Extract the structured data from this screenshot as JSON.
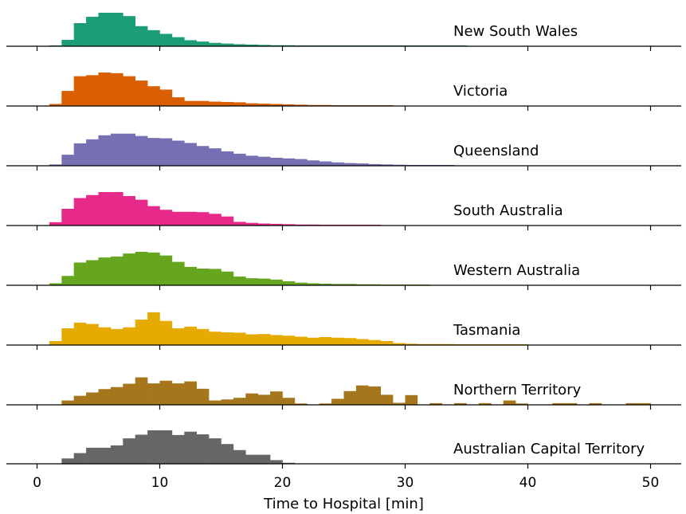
{
  "chart_data": {
    "type": "bar",
    "subtype": "stacked-histogram-ridgeline",
    "xlabel": "Time to Hospital [min]",
    "xlim": [
      -2.5,
      52.5
    ],
    "xticks": [
      0,
      10,
      20,
      30,
      40,
      50
    ],
    "bin_width": 1,
    "bin_start": 0,
    "series": [
      {
        "name": "New South Wales",
        "color": "#1b9e77",
        "values": [
          0,
          0.02,
          0.19,
          0.69,
          0.88,
          1.0,
          1.0,
          0.9,
          0.6,
          0.48,
          0.37,
          0.27,
          0.18,
          0.14,
          0.1,
          0.08,
          0.06,
          0.05,
          0.04,
          0.03,
          0.03,
          0.02,
          0.02,
          0.02,
          0.01,
          0.01,
          0.01,
          0.01,
          0.01,
          0.01,
          0.01,
          0.01,
          0.005,
          0.005,
          0.005,
          0.0,
          0.0,
          0.0,
          0.0,
          0.0,
          0.0,
          0.0,
          0.0,
          0.0,
          0.0,
          0.0,
          0.0,
          0.0,
          0.0,
          0.0
        ]
      },
      {
        "name": "Victoria",
        "color": "#d95f02",
        "values": [
          0,
          0.06,
          0.45,
          0.89,
          0.92,
          1.0,
          0.98,
          0.89,
          0.76,
          0.59,
          0.49,
          0.26,
          0.15,
          0.15,
          0.13,
          0.12,
          0.11,
          0.08,
          0.07,
          0.06,
          0.05,
          0.04,
          0.03,
          0.03,
          0.02,
          0.02,
          0.02,
          0.01,
          0.01,
          0.0,
          0.0,
          0.0,
          0.0,
          0.0,
          0.0,
          0.0,
          0.0,
          0.0,
          0.0,
          0.0,
          0.0,
          0.0,
          0.0,
          0.0,
          0.0,
          0.0,
          0.0,
          0.0,
          0.0,
          0.0
        ]
      },
      {
        "name": "Queensland",
        "color": "#7570b3",
        "values": [
          0,
          0.04,
          0.33,
          0.67,
          0.79,
          0.91,
          0.96,
          0.96,
          0.89,
          0.83,
          0.82,
          0.75,
          0.68,
          0.59,
          0.52,
          0.43,
          0.36,
          0.3,
          0.27,
          0.24,
          0.22,
          0.2,
          0.16,
          0.13,
          0.1,
          0.08,
          0.07,
          0.05,
          0.04,
          0.03,
          0.02,
          0.02,
          0.01,
          0.01,
          0.0,
          0.0,
          0.0,
          0.0,
          0.0,
          0.0,
          0.0,
          0.0,
          0.0,
          0.0,
          0.0,
          0.0,
          0.0,
          0.0,
          0.0,
          0.0
        ]
      },
      {
        "name": "South Australia",
        "color": "#e7298a",
        "values": [
          0,
          0.1,
          0.5,
          0.82,
          0.91,
          1.0,
          1.0,
          0.88,
          0.77,
          0.58,
          0.47,
          0.41,
          0.41,
          0.4,
          0.35,
          0.27,
          0.11,
          0.08,
          0.06,
          0.05,
          0.04,
          0.03,
          0.03,
          0.02,
          0.01,
          0.01,
          0.01,
          0.01,
          0.0,
          0.0,
          0.0,
          0.0,
          0.0,
          0.0,
          0.0,
          0.0,
          0.0,
          0.0,
          0.0,
          0.0,
          0.0,
          0.0,
          0.0,
          0.0,
          0.0,
          0.0,
          0.0,
          0.0,
          0.0,
          0.0
        ]
      },
      {
        "name": "Western Australia",
        "color": "#66a61e",
        "values": [
          0,
          0.06,
          0.28,
          0.68,
          0.75,
          0.83,
          0.86,
          0.95,
          1.0,
          0.98,
          0.89,
          0.7,
          0.55,
          0.5,
          0.49,
          0.41,
          0.26,
          0.21,
          0.2,
          0.17,
          0.12,
          0.08,
          0.06,
          0.05,
          0.04,
          0.04,
          0.03,
          0.03,
          0.02,
          0.02,
          0.01,
          0.01,
          0.0,
          0.0,
          0.0,
          0.0,
          0.0,
          0.0,
          0.0,
          0.0,
          0.0,
          0.0,
          0.0,
          0.0,
          0.0,
          0.0,
          0.0,
          0.0,
          0.0,
          0.0
        ]
      },
      {
        "name": "Tasmania",
        "color": "#e6ab02",
        "values": [
          0,
          0.12,
          0.5,
          0.67,
          0.63,
          0.53,
          0.48,
          0.53,
          0.76,
          0.98,
          0.72,
          0.5,
          0.55,
          0.48,
          0.4,
          0.38,
          0.37,
          0.32,
          0.33,
          0.3,
          0.28,
          0.25,
          0.22,
          0.24,
          0.22,
          0.21,
          0.18,
          0.15,
          0.12,
          0.06,
          0.04,
          0.03,
          0.03,
          0.03,
          0.02,
          0.02,
          0.02,
          0.02,
          0.02,
          0.02,
          0.0,
          0.0,
          0.0,
          0.0,
          0.0,
          0.0,
          0.0,
          0.0,
          0.0,
          0.0
        ]
      },
      {
        "name": "Northern Territory",
        "color": "#a6761d",
        "values": [
          0,
          0.0,
          0.13,
          0.27,
          0.37,
          0.47,
          0.53,
          0.63,
          0.82,
          0.64,
          0.72,
          0.64,
          0.7,
          0.48,
          0.13,
          0.16,
          0.21,
          0.34,
          0.3,
          0.4,
          0.21,
          0.04,
          0.0,
          0.04,
          0.18,
          0.41,
          0.58,
          0.55,
          0.3,
          0.06,
          0.29,
          0.0,
          0.05,
          0.0,
          0.05,
          0.0,
          0.05,
          0.0,
          0.13,
          0.04,
          0.0,
          0.0,
          0.05,
          0.05,
          0.0,
          0.05,
          0.0,
          0.0,
          0.05,
          0.05
        ]
      },
      {
        "name": "Australian Capital Territory",
        "color": "#666666",
        "values": [
          0,
          0.0,
          0.16,
          0.32,
          0.48,
          0.48,
          0.55,
          0.76,
          0.87,
          1.0,
          1.0,
          0.86,
          0.96,
          0.88,
          0.76,
          0.59,
          0.41,
          0.27,
          0.27,
          0.11,
          0.03,
          0.0,
          0.0,
          0.0,
          0.0,
          0.0,
          0.0,
          0.0,
          0.0,
          0.0,
          0.0,
          0.0,
          0.0,
          0.0,
          0.0,
          0.0,
          0.0,
          0.0,
          0.0,
          0.0,
          0.0,
          0.0,
          0.0,
          0.0,
          0.0,
          0.0,
          0.0,
          0.0,
          0.0,
          0.0
        ]
      }
    ]
  }
}
